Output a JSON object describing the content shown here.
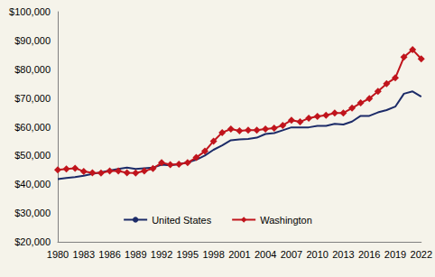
{
  "chart_data": {
    "type": "line",
    "x": [
      1980,
      1981,
      1982,
      1983,
      1984,
      1985,
      1986,
      1987,
      1988,
      1989,
      1990,
      1991,
      1992,
      1993,
      1994,
      1995,
      1996,
      1997,
      1998,
      1999,
      2000,
      2001,
      2002,
      2003,
      2004,
      2005,
      2006,
      2007,
      2008,
      2009,
      2010,
      2011,
      2012,
      2013,
      2014,
      2015,
      2016,
      2017,
      2018,
      2019,
      2020,
      2021,
      2022
    ],
    "series": [
      {
        "name": "United States",
        "color": "#1c2b68",
        "marker": "none",
        "line_style": "solid",
        "values": [
          41800,
          42200,
          42500,
          43000,
          43600,
          44200,
          44800,
          45300,
          45800,
          45300,
          45600,
          45800,
          46800,
          46600,
          47000,
          47600,
          48500,
          50000,
          52000,
          53500,
          55300,
          55600,
          55800,
          56200,
          57500,
          57800,
          58800,
          59800,
          59800,
          59800,
          60300,
          60300,
          61000,
          60800,
          61800,
          63800,
          63800,
          65000,
          65800,
          67000,
          71500,
          72300,
          70500
        ]
      },
      {
        "name": "Washington",
        "color": "#c0141c",
        "marker": "diamond",
        "line_style": "solid",
        "values": [
          45000,
          45300,
          45600,
          44500,
          44000,
          43900,
          44600,
          44600,
          44000,
          43900,
          44600,
          45500,
          47500,
          46800,
          47000,
          47500,
          49300,
          51500,
          55000,
          58000,
          59200,
          58600,
          58800,
          58800,
          59200,
          59500,
          60500,
          62300,
          61700,
          63000,
          63600,
          64000,
          64800,
          64800,
          66500,
          68300,
          69800,
          72300,
          75000,
          77000,
          84200,
          86800,
          83600
        ]
      }
    ],
    "xlim": [
      1980,
      2022
    ],
    "xticks": [
      1980,
      1983,
      1986,
      1989,
      1992,
      1995,
      1998,
      2001,
      2004,
      2007,
      2010,
      2013,
      2016,
      2019,
      2022
    ],
    "ylim": [
      20000,
      100000
    ],
    "yticks": [
      {
        "value": 20000,
        "label": "$20,000"
      },
      {
        "value": 30000,
        "label": "$30,000"
      },
      {
        "value": 40000,
        "label": "$40,000"
      },
      {
        "value": 50000,
        "label": "$50,000"
      },
      {
        "value": 60000,
        "label": "$60,000"
      },
      {
        "value": 70000,
        "label": "$70,000"
      },
      {
        "value": 80000,
        "label": "$80,000"
      },
      {
        "value": 90000,
        "label": "$90,000"
      },
      {
        "value": 100000,
        "label": "$100,000"
      }
    ],
    "grid": false,
    "legend": "bottom"
  }
}
